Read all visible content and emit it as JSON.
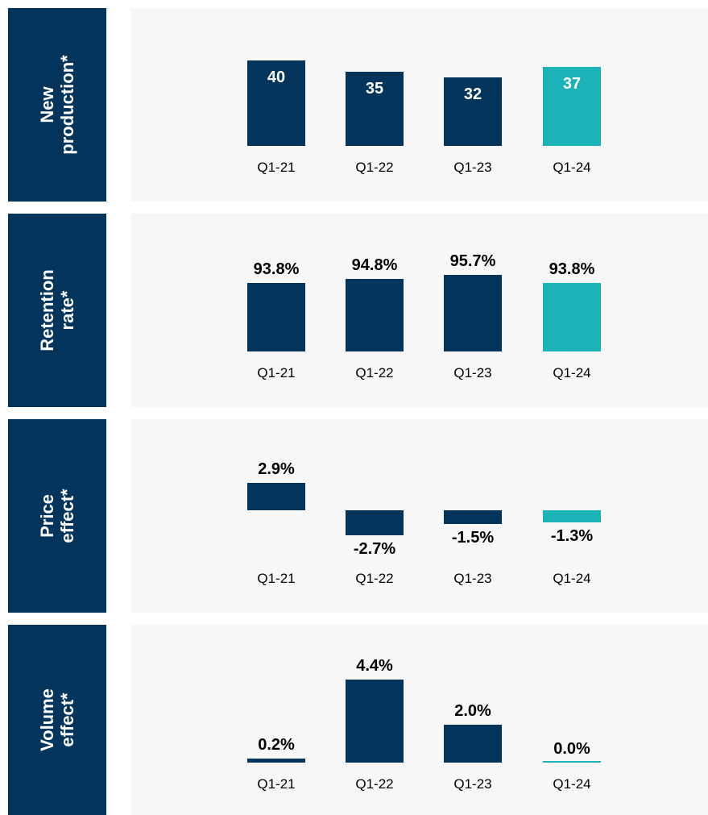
{
  "chart_data": [
    {
      "type": "bar",
      "title": "New production*",
      "categories": [
        "Q1-21",
        "Q1-22",
        "Q1-23",
        "Q1-24"
      ],
      "values": [
        40,
        35,
        32,
        37
      ],
      "colors": [
        "#03355c",
        "#03355c",
        "#03355c",
        "#19b3b8"
      ],
      "ylim": [
        0,
        53
      ]
    },
    {
      "type": "bar",
      "title": "Retention rate*",
      "categories": [
        "Q1-21",
        "Q1-22",
        "Q1-23",
        "Q1-24"
      ],
      "values": [
        93.8,
        94.8,
        95.7,
        93.8
      ],
      "value_labels": [
        "93.8%",
        "94.8%",
        "95.7%",
        "93.8%"
      ],
      "colors": [
        "#03355c",
        "#03355c",
        "#03355c",
        "#19b3b8"
      ],
      "ylim": [
        78,
        104
      ]
    },
    {
      "type": "bar",
      "title": "Price effect*",
      "categories": [
        "Q1-21",
        "Q1-22",
        "Q1-23",
        "Q1-24"
      ],
      "values": [
        2.9,
        -2.7,
        -1.5,
        -1.3
      ],
      "value_labels": [
        "2.9%",
        "-2.7%",
        "-1.5%",
        "-1.3%"
      ],
      "colors": [
        "#03355c",
        "#03355c",
        "#03355c",
        "#19b3b8"
      ],
      "ylim": [
        -5,
        7
      ]
    },
    {
      "type": "bar",
      "title": "Volume effect*",
      "categories": [
        "Q1-21",
        "Q1-22",
        "Q1-23",
        "Q1-24"
      ],
      "values": [
        0.2,
        4.4,
        2.0,
        0.0
      ],
      "value_labels": [
        "0.2%",
        "4.4%",
        "2.0%",
        "0.0%"
      ],
      "colors": [
        "#03355c",
        "#03355c",
        "#03355c",
        "#19b3b8"
      ],
      "ylim": [
        0,
        6
      ]
    }
  ]
}
